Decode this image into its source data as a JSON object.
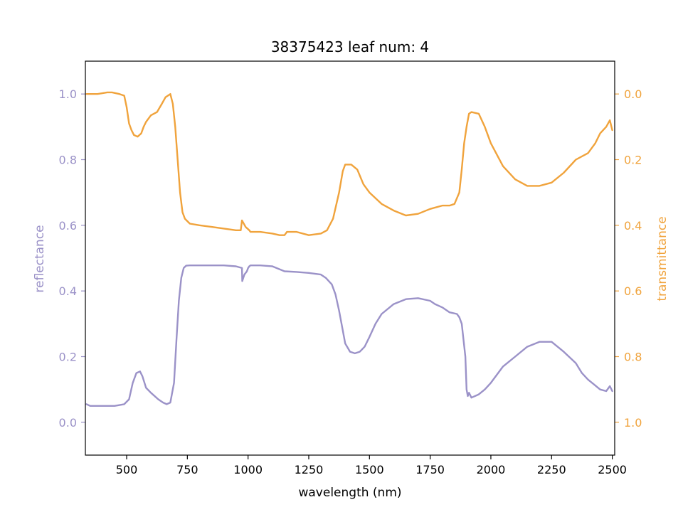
{
  "chart_data": {
    "type": "line",
    "title": "38375423 leaf num: 4",
    "xlabel": "wavelength (nm)",
    "ylabel_left": "reflectance",
    "ylabel_right": "transmittance",
    "xlim": [
      330,
      2510
    ],
    "ylim_left": [
      -0.1,
      1.1
    ],
    "ylim_right": [
      1.1,
      -0.1
    ],
    "right_axis_inverted": true,
    "grid": false,
    "legend": "none",
    "colors": {
      "reflectance": "#9b92c8",
      "transmittance": "#f0a33c"
    },
    "x_ticks": [
      "500",
      "750",
      "1000",
      "1250",
      "1500",
      "1750",
      "2000",
      "2250",
      "2500"
    ],
    "y_left_ticks": [
      "0.0",
      "0.2",
      "0.4",
      "0.6",
      "0.8",
      "1.0"
    ],
    "y_right_ticks": [
      "0.0",
      "0.2",
      "0.4",
      "0.6",
      "0.8",
      "1.0"
    ],
    "series": [
      {
        "axis": "left",
        "x": [
          335,
          350,
          400,
          450,
          490,
          510,
          525,
          540,
          555,
          565,
          580,
          600,
          630,
          650,
          665,
          680,
          695,
          705,
          715,
          725,
          735,
          745,
          760,
          800,
          850,
          900,
          950,
          975,
          976,
          985,
          995,
          1000,
          1005,
          1010,
          1050,
          1100,
          1150,
          1200,
          1250,
          1300,
          1320,
          1345,
          1360,
          1375,
          1390,
          1400,
          1420,
          1440,
          1460,
          1480,
          1500,
          1525,
          1550,
          1600,
          1650,
          1700,
          1750,
          1770,
          1800,
          1830,
          1860,
          1870,
          1880,
          1895,
          1900,
          1905,
          1910,
          1920,
          1950,
          1975,
          2000,
          2050,
          2100,
          2150,
          2200,
          2250,
          2300,
          2350,
          2375,
          2400,
          2425,
          2450,
          2475,
          2490,
          2500
        ],
        "y": [
          0.055,
          0.05,
          0.05,
          0.05,
          0.055,
          0.07,
          0.12,
          0.15,
          0.155,
          0.14,
          0.105,
          0.09,
          0.07,
          0.06,
          0.055,
          0.06,
          0.12,
          0.25,
          0.37,
          0.44,
          0.47,
          0.477,
          0.478,
          0.478,
          0.478,
          0.478,
          0.475,
          0.47,
          0.43,
          0.45,
          0.46,
          0.47,
          0.475,
          0.478,
          0.478,
          0.475,
          0.46,
          0.458,
          0.455,
          0.45,
          0.44,
          0.42,
          0.39,
          0.34,
          0.28,
          0.24,
          0.215,
          0.21,
          0.215,
          0.23,
          0.26,
          0.3,
          0.33,
          0.36,
          0.375,
          0.378,
          0.37,
          0.36,
          0.35,
          0.335,
          0.33,
          0.32,
          0.3,
          0.2,
          0.1,
          0.08,
          0.09,
          0.075,
          0.085,
          0.1,
          0.12,
          0.17,
          0.2,
          0.23,
          0.245,
          0.245,
          0.215,
          0.18,
          0.15,
          0.13,
          0.115,
          0.1,
          0.095,
          0.11,
          0.095
        ]
      },
      {
        "axis": "right",
        "x": [
          335,
          350,
          380,
          420,
          440,
          470,
          490,
          500,
          510,
          520,
          530,
          545,
          560,
          570,
          580,
          600,
          625,
          645,
          660,
          680,
          690,
          700,
          710,
          720,
          730,
          740,
          760,
          800,
          850,
          900,
          950,
          970,
          975,
          990,
          1005,
          1010,
          1050,
          1100,
          1130,
          1150,
          1160,
          1200,
          1250,
          1300,
          1325,
          1350,
          1375,
          1390,
          1400,
          1425,
          1450,
          1475,
          1500,
          1550,
          1600,
          1650,
          1700,
          1750,
          1800,
          1830,
          1850,
          1870,
          1880,
          1890,
          1900,
          1910,
          1920,
          1950,
          1975,
          2000,
          2050,
          2100,
          2150,
          2200,
          2250,
          2300,
          2350,
          2400,
          2430,
          2450,
          2475,
          2490,
          2500
        ],
        "y": [
          0.0,
          0.0,
          0.0,
          -0.005,
          -0.005,
          0.0,
          0.005,
          0.04,
          0.09,
          0.11,
          0.125,
          0.13,
          0.12,
          0.1,
          0.085,
          0.065,
          0.055,
          0.03,
          0.01,
          0.0,
          0.03,
          0.1,
          0.2,
          0.3,
          0.36,
          0.38,
          0.395,
          0.4,
          0.405,
          0.41,
          0.415,
          0.415,
          0.385,
          0.405,
          0.415,
          0.42,
          0.42,
          0.425,
          0.43,
          0.43,
          0.42,
          0.42,
          0.43,
          0.425,
          0.415,
          0.38,
          0.3,
          0.235,
          0.215,
          0.215,
          0.23,
          0.275,
          0.3,
          0.335,
          0.355,
          0.37,
          0.365,
          0.35,
          0.34,
          0.34,
          0.335,
          0.3,
          0.23,
          0.15,
          0.1,
          0.06,
          0.055,
          0.06,
          0.1,
          0.15,
          0.22,
          0.26,
          0.28,
          0.28,
          0.27,
          0.24,
          0.2,
          0.18,
          0.15,
          0.12,
          0.1,
          0.08,
          0.11
        ]
      }
    ]
  }
}
